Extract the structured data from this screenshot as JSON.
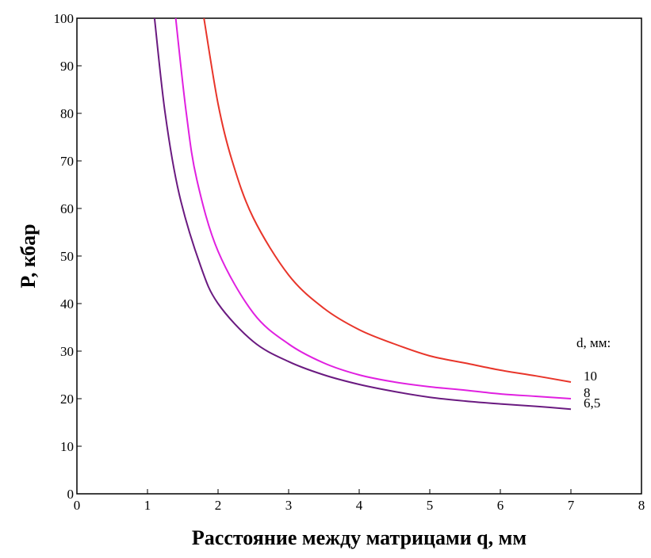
{
  "chart_data": {
    "type": "line",
    "xlabel": "Расстояние между матрицами q, мм",
    "ylabel": "P, кбар",
    "xlim": [
      0,
      8
    ],
    "ylim": [
      0,
      100
    ],
    "xticks": [
      0,
      1,
      2,
      3,
      4,
      5,
      6,
      7,
      8
    ],
    "yticks": [
      0,
      10,
      20,
      30,
      40,
      50,
      60,
      70,
      80,
      90,
      100
    ],
    "grid": false,
    "legend_title": "d, мм:",
    "series": [
      {
        "name": "10",
        "color": "#e8352a",
        "points": [
          [
            1.8,
            100
          ],
          [
            2.0,
            82
          ],
          [
            2.2,
            70
          ],
          [
            2.5,
            58
          ],
          [
            3.0,
            46
          ],
          [
            3.5,
            39
          ],
          [
            4.0,
            34.5
          ],
          [
            4.5,
            31.5
          ],
          [
            5.0,
            29
          ],
          [
            5.5,
            27.5
          ],
          [
            6.0,
            26
          ],
          [
            6.5,
            24.8
          ],
          [
            7.0,
            23.5
          ]
        ]
      },
      {
        "name": "8",
        "color": "#e020e0",
        "points": [
          [
            1.4,
            100
          ],
          [
            1.55,
            80
          ],
          [
            1.7,
            66
          ],
          [
            2.0,
            51
          ],
          [
            2.5,
            38
          ],
          [
            3.0,
            31.5
          ],
          [
            3.5,
            27.5
          ],
          [
            4.0,
            25
          ],
          [
            4.5,
            23.5
          ],
          [
            5.0,
            22.5
          ],
          [
            5.5,
            21.8
          ],
          [
            6.0,
            21
          ],
          [
            6.5,
            20.5
          ],
          [
            7.0,
            20
          ]
        ]
      },
      {
        "name": "6,5",
        "color": "#6a1a80",
        "points": [
          [
            1.1,
            100
          ],
          [
            1.25,
            80
          ],
          [
            1.45,
            63
          ],
          [
            1.75,
            48
          ],
          [
            2.0,
            40
          ],
          [
            2.5,
            32
          ],
          [
            3.0,
            27.8
          ],
          [
            3.5,
            25
          ],
          [
            4.0,
            23
          ],
          [
            4.5,
            21.5
          ],
          [
            5.0,
            20.3
          ],
          [
            5.5,
            19.5
          ],
          [
            6.0,
            18.9
          ],
          [
            6.5,
            18.4
          ],
          [
            7.0,
            17.8
          ]
        ]
      }
    ]
  }
}
